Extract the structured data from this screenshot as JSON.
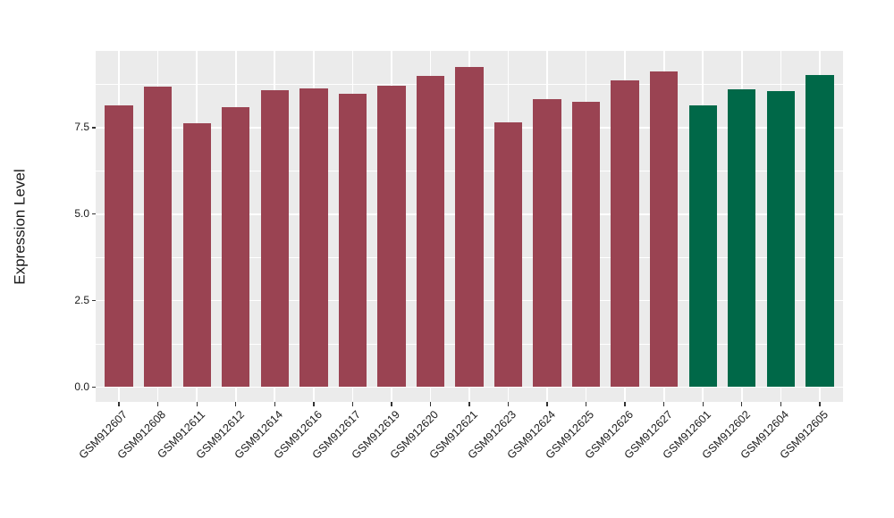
{
  "chart_data": {
    "type": "bar",
    "title": "",
    "ylabel": "Expression Level",
    "xlabel": "",
    "categories": [
      "GSM912607",
      "GSM912608",
      "GSM912611",
      "GSM912612",
      "GSM912614",
      "GSM912616",
      "GSM912617",
      "GSM912619",
      "GSM912620",
      "GSM912621",
      "GSM912623",
      "GSM912624",
      "GSM912625",
      "GSM912626",
      "GSM912627",
      "GSM912601",
      "GSM912602",
      "GSM912604",
      "GSM912605"
    ],
    "values": [
      8.15,
      8.68,
      7.62,
      8.1,
      8.59,
      8.63,
      8.49,
      8.72,
      9.0,
      9.25,
      7.66,
      8.32,
      8.25,
      8.86,
      9.13,
      8.15,
      8.61,
      8.56,
      9.01
    ],
    "groups": [
      "A",
      "A",
      "A",
      "A",
      "A",
      "A",
      "A",
      "A",
      "A",
      "A",
      "A",
      "A",
      "A",
      "A",
      "A",
      "B",
      "B",
      "B",
      "B"
    ],
    "group_colors": {
      "A": "#9A4352",
      "B": "#006848"
    },
    "yticks": [
      0,
      2.5,
      5,
      7.5
    ],
    "ytick_labels": [
      "0.0",
      "2.5",
      "5.0",
      "7.5"
    ],
    "minor_yticks": [
      1.25,
      3.75,
      6.25,
      8.75
    ],
    "ylim": [
      -0.43,
      9.72
    ],
    "baseline": 0,
    "grid": true,
    "legend": "none",
    "panel_bg": "#EBEBEB",
    "grid_color": "#FFFFFF",
    "axis_text_color": "#1A1A1A",
    "tick_color": "#333333",
    "x_tick_rotation": 45,
    "bar_width_fraction": 0.72,
    "x_expand": 0.6
  }
}
